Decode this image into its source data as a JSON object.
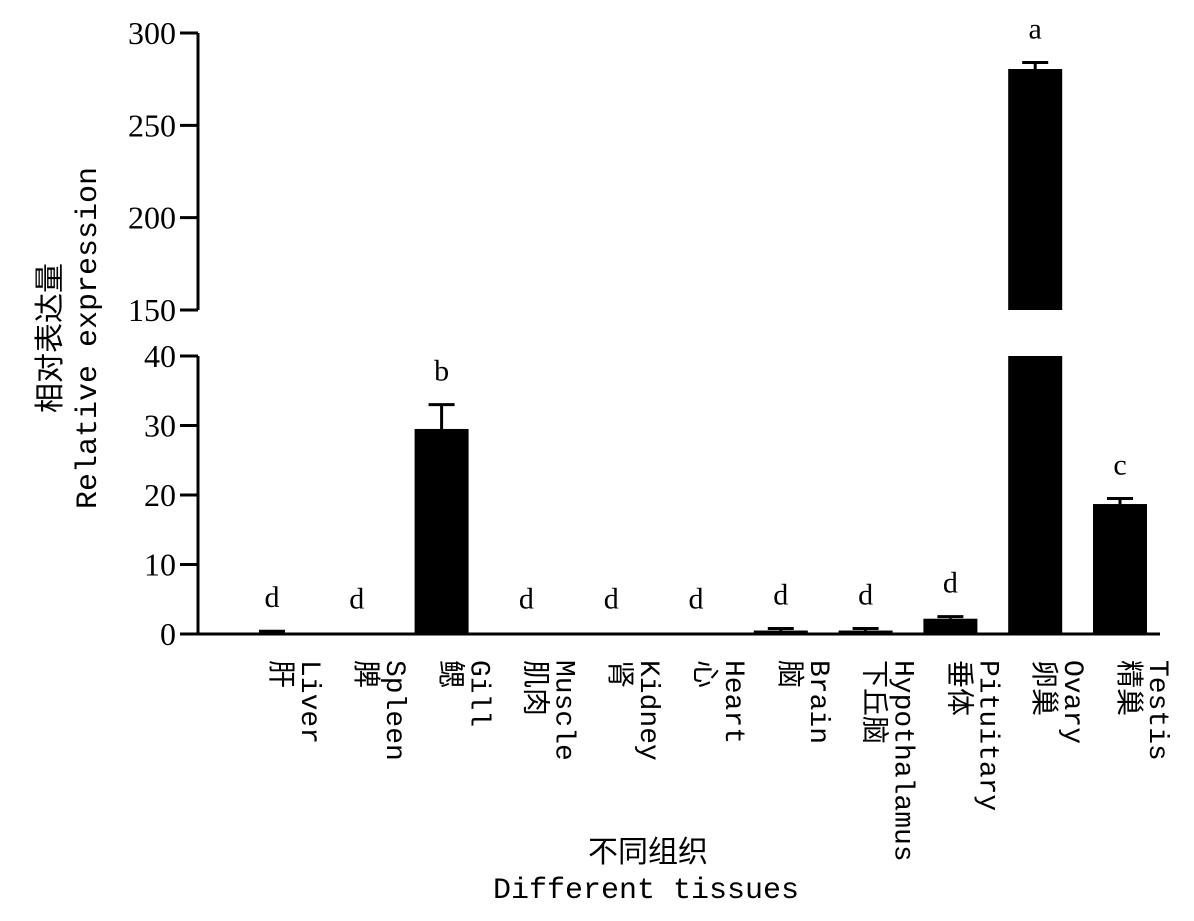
{
  "chart_data": {
    "type": "bar",
    "xlabel_cn": "不同组织",
    "xlabel_en": "Different tissues",
    "ylabel_cn": "相对表达量",
    "ylabel_en": "Relative expression",
    "broken_axis": {
      "lower_range": [
        0,
        40
      ],
      "upper_range": [
        150,
        300
      ],
      "lower_ticks": [
        "0",
        "10",
        "20",
        "30",
        "40"
      ],
      "upper_ticks": [
        "150",
        "200",
        "250",
        "300"
      ]
    },
    "categories": [
      {
        "cn": "肝",
        "en": "Liver"
      },
      {
        "cn": "脾",
        "en": "Spleen"
      },
      {
        "cn": "鳃",
        "en": "Gill"
      },
      {
        "cn": "肌肉",
        "en": "Muscle"
      },
      {
        "cn": "肾",
        "en": "Kidney"
      },
      {
        "cn": "心",
        "en": "Heart"
      },
      {
        "cn": "脑",
        "en": "Brain"
      },
      {
        "cn": "下丘脑",
        "en": "Hypothalamus"
      },
      {
        "cn": "垂体",
        "en": "Pituitary"
      },
      {
        "cn": "卵巢",
        "en": "Ovary"
      },
      {
        "cn": "精巢",
        "en": "Testis"
      }
    ],
    "values": [
      0.2,
      0.1,
      29.5,
      0.1,
      0.1,
      0.1,
      0.5,
      0.5,
      2.2,
      280.5,
      18.7
    ],
    "errors": [
      0.2,
      0.1,
      3.5,
      0.1,
      0.1,
      0.1,
      0.3,
      0.3,
      0.3,
      3.5,
      0.8
    ],
    "significance": [
      "d",
      "d",
      "b",
      "d",
      "d",
      "d",
      "d",
      "d",
      "d",
      "a",
      "c"
    ],
    "bar_color": "#000000",
    "grid": false,
    "legend": "none"
  }
}
